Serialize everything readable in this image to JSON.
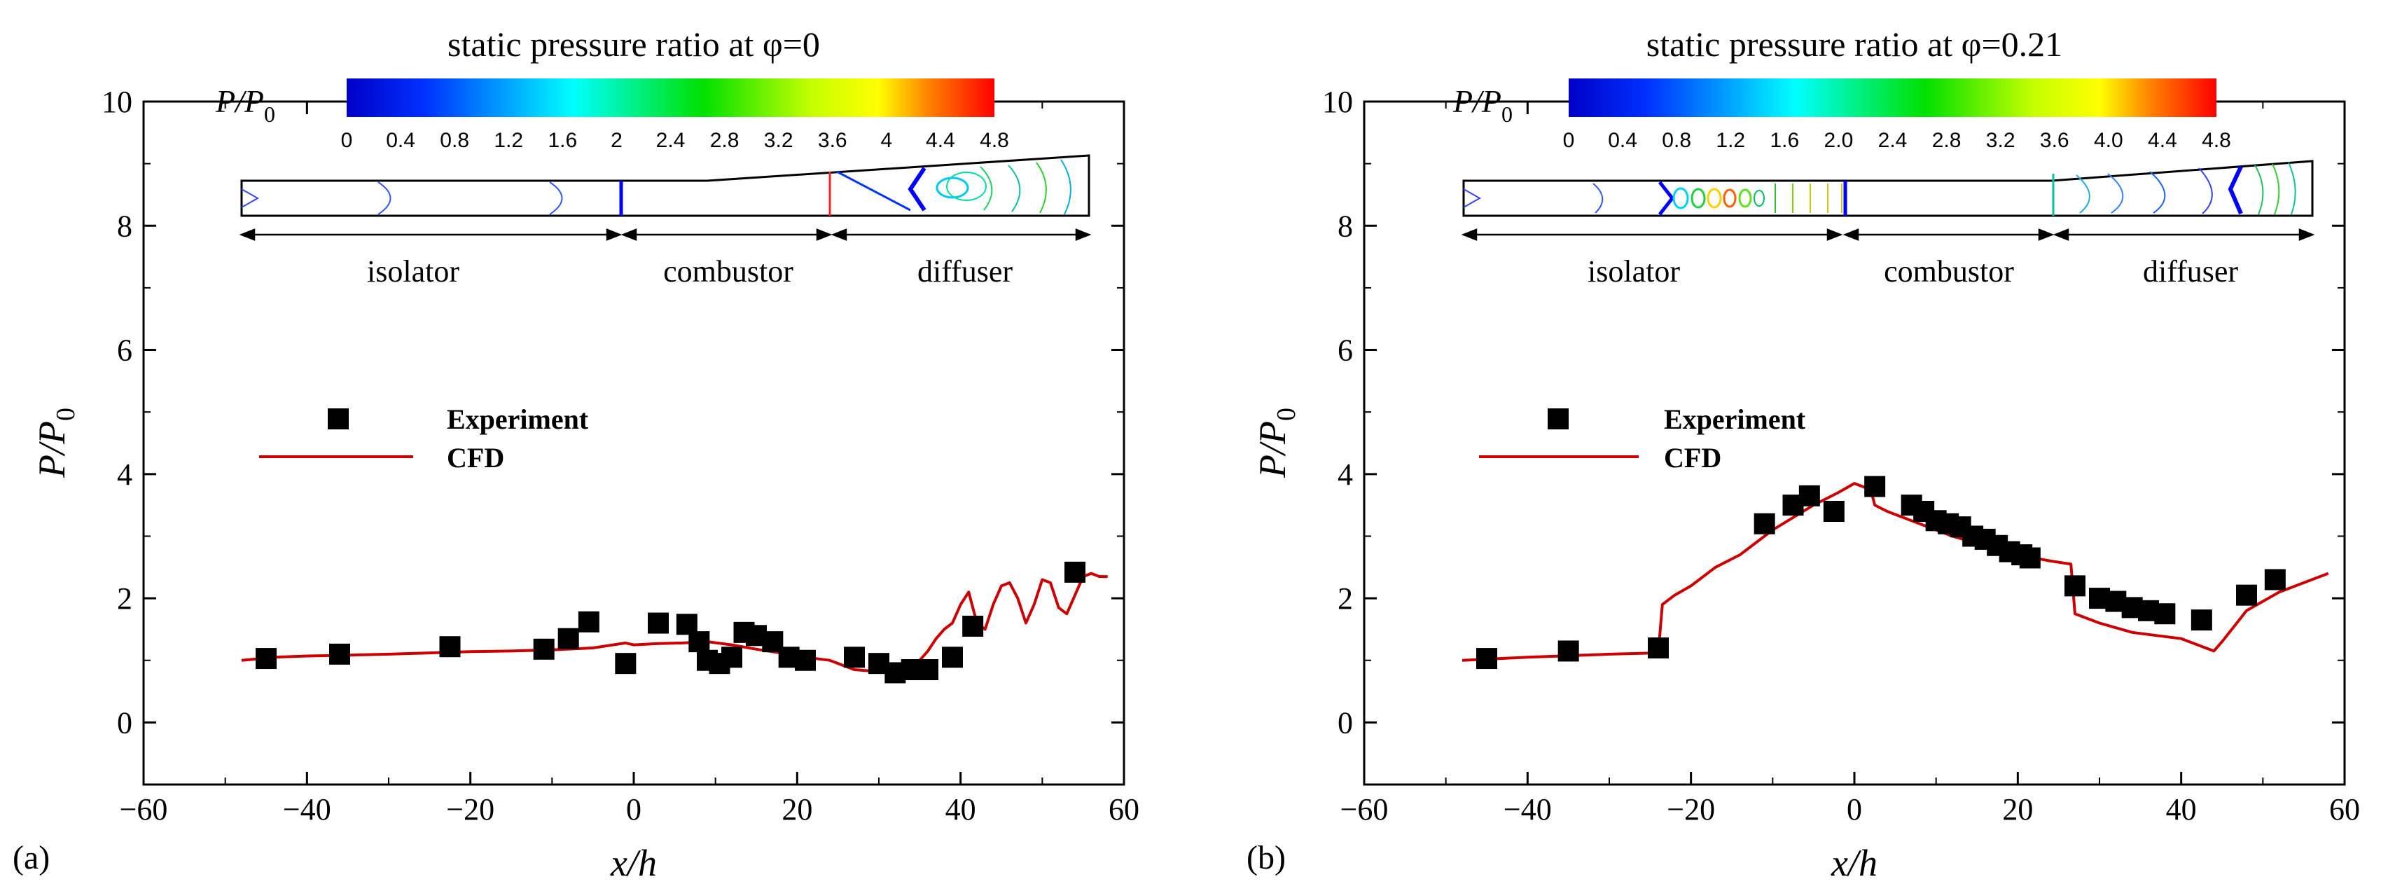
{
  "chart_data": [
    {
      "type": "scatter",
      "panel_label": "(a)",
      "title": "static pressure ratio at φ=0",
      "xlabel": "x/h",
      "ylabel": "P/P",
      "ylabel_sub": "0",
      "xlim": [
        -60,
        60
      ],
      "ylim": [
        -1,
        10
      ],
      "xticks": [
        "−60",
        "−40",
        "−20",
        "0",
        "20",
        "40",
        "60"
      ],
      "yticks": [
        "0",
        "2",
        "4",
        "6",
        "8",
        "10"
      ],
      "legend": {
        "experiment": "Experiment",
        "cfd": "CFD"
      },
      "colorbar": {
        "label": "P/P",
        "label_sub": "0",
        "ticks": [
          "0",
          "0.4",
          "0.8",
          "1.2",
          "1.6",
          "2",
          "2.4",
          "2.8",
          "3.2",
          "3.6",
          "4",
          "4.4",
          "4.8"
        ]
      },
      "regions": [
        "isolator",
        "combustor",
        "diffuser"
      ],
      "series": [
        {
          "name": "Experiment",
          "x": [
            -45,
            -36,
            -22.5,
            -11,
            -8,
            -5.5,
            -1,
            3,
            6.5,
            8,
            9,
            10.5,
            12,
            13.5,
            15,
            17,
            19,
            21,
            27,
            30,
            32,
            34,
            36,
            39,
            41.5,
            54
          ],
          "y": [
            1.03,
            1.1,
            1.22,
            1.18,
            1.35,
            1.62,
            0.95,
            1.6,
            1.58,
            1.3,
            1.0,
            0.95,
            1.05,
            1.45,
            1.4,
            1.3,
            1.05,
            1.0,
            1.05,
            0.95,
            0.8,
            0.85,
            0.85,
            1.05,
            1.55,
            2.42
          ]
        },
        {
          "name": "CFD",
          "x": [
            -48,
            -44,
            -40,
            -36,
            -30,
            -25,
            -20,
            -15,
            -10,
            -5,
            -1,
            0,
            3,
            6,
            9,
            12,
            15,
            18,
            21,
            24,
            27,
            30,
            33,
            34.5,
            35,
            36,
            37,
            38,
            39,
            40,
            41,
            42,
            43,
            44,
            45,
            46,
            47,
            48,
            49,
            50,
            51,
            52,
            53,
            54,
            55,
            56,
            57,
            58
          ],
          "y": [
            1.0,
            1.05,
            1.07,
            1.08,
            1.1,
            1.12,
            1.14,
            1.15,
            1.17,
            1.2,
            1.28,
            1.25,
            1.27,
            1.28,
            1.3,
            1.25,
            1.18,
            1.12,
            1.05,
            1.0,
            0.85,
            0.82,
            0.8,
            0.83,
            1.0,
            1.15,
            1.35,
            1.5,
            1.6,
            1.9,
            2.1,
            1.6,
            1.5,
            1.9,
            2.2,
            2.25,
            2.0,
            1.6,
            1.9,
            2.3,
            2.25,
            1.85,
            1.75,
            2.05,
            2.35,
            2.4,
            2.35,
            2.35
          ]
        }
      ]
    },
    {
      "type": "scatter",
      "panel_label": "(b)",
      "title": "static pressure ratio at φ=0.21",
      "xlabel": "x/h",
      "ylabel": "P/P",
      "ylabel_sub": "0",
      "xlim": [
        -60,
        60
      ],
      "ylim": [
        -1,
        10
      ],
      "xticks": [
        "−60",
        "−40",
        "−20",
        "0",
        "20",
        "40",
        "60"
      ],
      "yticks": [
        "0",
        "2",
        "4",
        "6",
        "8",
        "10"
      ],
      "legend": {
        "experiment": "Experiment",
        "cfd": "CFD"
      },
      "colorbar": {
        "label": "P/P",
        "label_sub": "0",
        "ticks": [
          "0",
          "0.4",
          "0.8",
          "1.2",
          "1.6",
          "2.0",
          "2.4",
          "2.8",
          "3.2",
          "3.6",
          "4.0",
          "4.4",
          "4.8"
        ]
      },
      "regions": [
        "isolator",
        "combustor",
        "diffuser"
      ],
      "series": [
        {
          "name": "Experiment",
          "x": [
            -45,
            -35,
            -24,
            -11,
            -7.5,
            -5.5,
            -2.5,
            2.5,
            7,
            8.5,
            10,
            11.5,
            13,
            14.5,
            16,
            17.5,
            19,
            20.5,
            21.5,
            27,
            30,
            32,
            34,
            36,
            38,
            42.5,
            48,
            51.5
          ],
          "y": [
            1.03,
            1.15,
            1.2,
            3.2,
            3.5,
            3.65,
            3.4,
            3.8,
            3.5,
            3.4,
            3.25,
            3.2,
            3.15,
            3.0,
            2.95,
            2.85,
            2.75,
            2.7,
            2.65,
            2.2,
            2.0,
            1.95,
            1.85,
            1.8,
            1.75,
            1.65,
            2.05,
            2.3
          ]
        },
        {
          "name": "CFD",
          "x": [
            -48,
            -40,
            -30,
            -24,
            -23.5,
            -22,
            -20,
            -17,
            -14,
            -10,
            -5,
            -2,
            0,
            2,
            2.5,
            4,
            8,
            12,
            16,
            20,
            22,
            24,
            26.5,
            27,
            30,
            34,
            37,
            40,
            44,
            45,
            48,
            52,
            56,
            58
          ],
          "y": [
            1.0,
            1.05,
            1.1,
            1.12,
            1.9,
            2.05,
            2.2,
            2.5,
            2.7,
            3.1,
            3.5,
            3.7,
            3.85,
            3.75,
            3.5,
            3.4,
            3.2,
            3.0,
            2.85,
            2.7,
            2.65,
            2.6,
            2.55,
            1.75,
            1.6,
            1.45,
            1.4,
            1.35,
            1.15,
            1.3,
            1.8,
            2.1,
            2.3,
            2.4
          ]
        }
      ]
    }
  ]
}
